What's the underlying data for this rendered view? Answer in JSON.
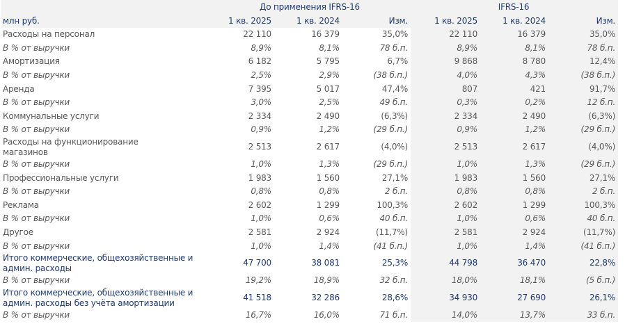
{
  "table": {
    "group_headers": [
      "До применения IFRS-16",
      "IFRS-16"
    ],
    "columns": [
      "млн руб.",
      "1 кв. 2025",
      "1 кв. 2024",
      "Изм.",
      "1 кв. 2025",
      "1 кв. 2024",
      "Изм."
    ],
    "rows": [
      [
        "Расходы на персонал",
        "22 110",
        "16 379",
        "35,0%",
        "22 110",
        "16 379",
        "35,0%"
      ],
      [
        "В % от выручки",
        "8,9%",
        "8,1%",
        "78 б.п.",
        "8,9%",
        "8,1%",
        "78 б.п."
      ],
      [
        "Амортизация",
        "6 182",
        "5 795",
        "6,7%",
        "9 868",
        "8 780",
        "12,4%"
      ],
      [
        "В % от выручки",
        "2,5%",
        "2,9%",
        "(38 б.п.)",
        "4,0%",
        "4,3%",
        "(38 б.п.)"
      ],
      [
        "Аренда",
        "7 395",
        "5 017",
        "47,4%",
        "807",
        "421",
        "91,7%"
      ],
      [
        "В % от выручки",
        "3,0%",
        "2,5%",
        "49 б.п.",
        "0,3%",
        "0,2%",
        "12 б.п."
      ],
      [
        "Коммунальные услуги",
        "2 334",
        "2 490",
        "(6,3%)",
        "2 334",
        "2 490",
        "(6,3%)"
      ],
      [
        "В % от выручки",
        "0,9%",
        "1,2%",
        "(29 б.п.)",
        "0,9%",
        "1,2%",
        "(29 б.п.)"
      ],
      [
        "Расходы на функционирование магазинов",
        "2 513",
        "2 617",
        "(4,0%)",
        "2 513",
        "2 617",
        "(4,0%)"
      ],
      [
        "В % от выручки",
        "1,0%",
        "1,3%",
        "(29 б.п.)",
        "1,0%",
        "1,3%",
        "(29 б.п.)"
      ],
      [
        "Профессиональные услуги",
        "1 983",
        "1 560",
        "27,1%",
        "1 983",
        "1 560",
        "27,1%"
      ],
      [
        "В % от выручки",
        "0,8%",
        "0,8%",
        "2 б.п.",
        "0,8%",
        "0,8%",
        "2 б.п."
      ],
      [
        "Реклама",
        "2 602",
        "1 299",
        "100,3%",
        "2 602",
        "1 299",
        "100,3%"
      ],
      [
        "В % от выручки",
        "1,0%",
        "0,6%",
        "40 б.п.",
        "1,0%",
        "0,6%",
        "40 б.п."
      ],
      [
        "Другое",
        "2 581",
        "2 924",
        "(11,7%)",
        "2 581",
        "2 924",
        "(11,7%)"
      ],
      [
        "В % от выручки",
        "1,0%",
        "1,4%",
        "(41 б.п.)",
        "1,0%",
        "1,4%",
        "(41 б.п.)"
      ],
      [
        "Итого коммерческие, общехозяйственные и админ. расходы",
        "47 700",
        "38 081",
        "25,3%",
        "44 798",
        "36 470",
        "22,8%"
      ],
      [
        "В % от выручки",
        "19,2%",
        "18,9%",
        "32 б.п.",
        "18,0%",
        "18,1%",
        "(5 б.п.)"
      ],
      [
        "Итого коммерческие, общехозяйственные и админ. расходы без учёта амортизации",
        "41 518",
        "32 286",
        "28,6%",
        "34 930",
        "27 690",
        "26,1%"
      ],
      [
        "В % от выручки",
        "16,7%",
        "16,0%",
        "71 б.п.",
        "14,0%",
        "13,7%",
        "33 б.п."
      ]
    ]
  }
}
